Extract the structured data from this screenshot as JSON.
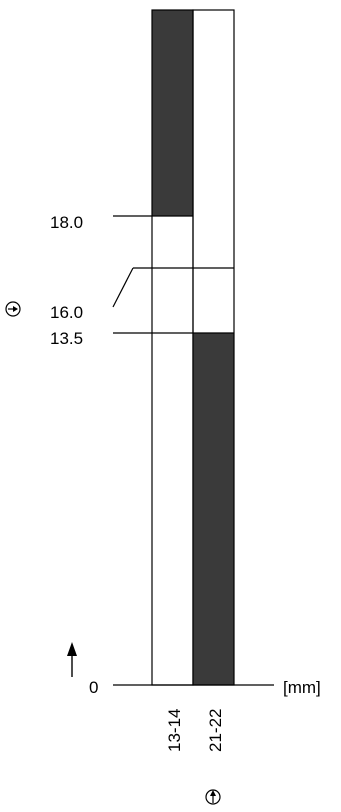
{
  "diagram": {
    "unit_label": "[mm]",
    "colors": {
      "closed": "#3a3a3a",
      "open": "#ffffff",
      "line": "#000000"
    },
    "icons": {
      "direct_opening": "direct-opening-arrow-icon",
      "travel_direction": "arrow-up-icon",
      "travel_ref": "arrow-right-circle-icon"
    },
    "levels": {
      "zero": {
        "label": "0",
        "value": 0
      },
      "contact2_switch": {
        "label": "13.5",
        "value": 13.5
      },
      "positive_opening": {
        "label": "16.0",
        "value": 16.0
      },
      "contact1_switch": {
        "label": "18.0",
        "value": 18.0
      }
    },
    "contacts": [
      {
        "label": "13-14",
        "closed_segments": [
          [
            18.0,
            26.0
          ]
        ]
      },
      {
        "label": "21-22",
        "closed_segments": [
          [
            0,
            13.5
          ]
        ]
      }
    ]
  }
}
